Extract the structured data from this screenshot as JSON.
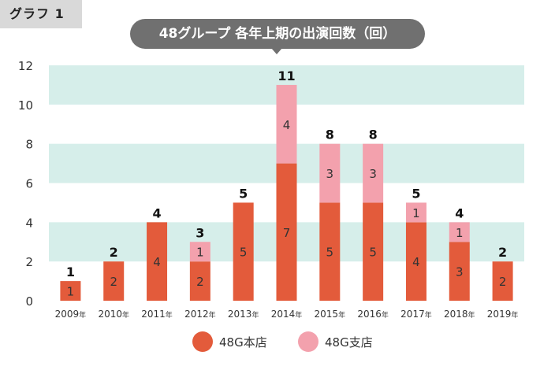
{
  "header": {
    "tag": "グラフ 1",
    "title": "48グループ 各年上期の出演回数（回）"
  },
  "legend": [
    {
      "label": "48G本店",
      "color": "#e35b3b"
    },
    {
      "label": "48G支店",
      "color": "#f3a1ad"
    }
  ],
  "chart_data": {
    "type": "bar",
    "stacked": true,
    "categories": [
      "2009",
      "2010",
      "2011",
      "2012",
      "2013",
      "2014",
      "2015",
      "2016",
      "2017",
      "2018",
      "2019"
    ],
    "category_suffix": "年",
    "series": [
      {
        "name": "48G本店",
        "color": "#e35b3b",
        "values": [
          1,
          2,
          4,
          2,
          5,
          7,
          5,
          5,
          4,
          3,
          2
        ]
      },
      {
        "name": "48G支店",
        "color": "#f3a1ad",
        "values": [
          0,
          0,
          0,
          1,
          0,
          4,
          3,
          3,
          1,
          1,
          0
        ]
      }
    ],
    "totals": [
      1,
      2,
      4,
      3,
      5,
      11,
      8,
      8,
      5,
      4,
      2
    ],
    "ylim": [
      0,
      12
    ],
    "yticks": [
      0,
      2,
      4,
      6,
      8,
      10,
      12
    ],
    "band_color": "#d6eeea",
    "title": "48グループ 各年上期の出演回数（回）"
  }
}
